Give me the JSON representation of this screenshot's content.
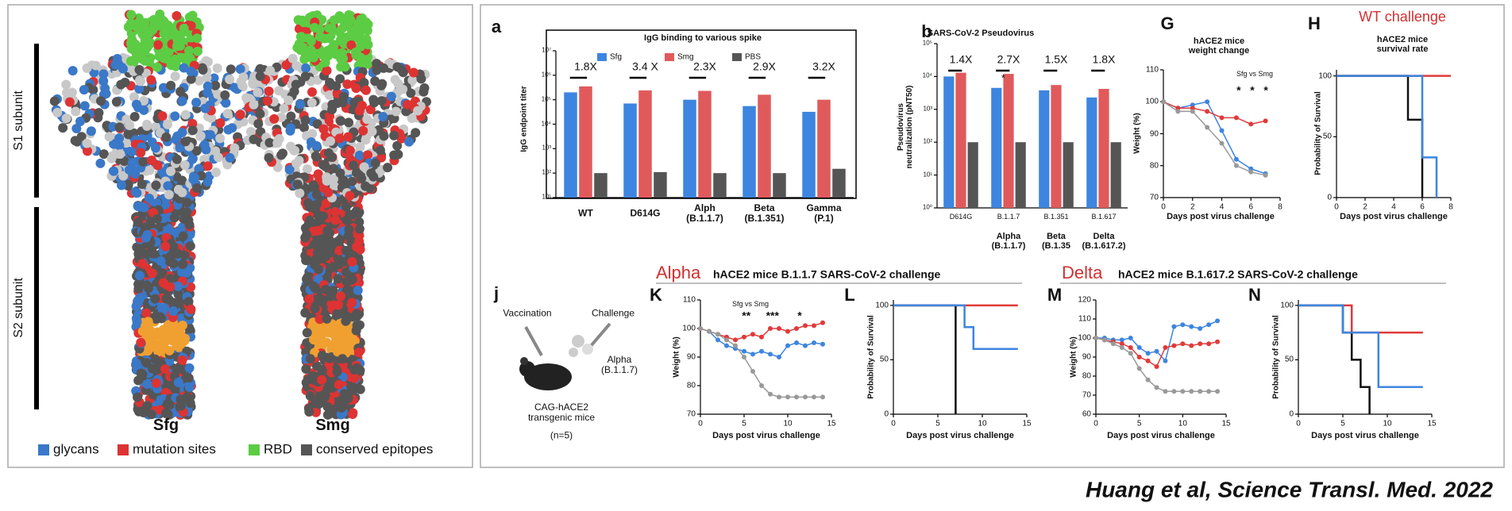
{
  "chart_data": [
    {
      "type": "bar",
      "label": "a",
      "title": "IgG binding to various spike",
      "ylabel": "IgG endpoint titer",
      "ylog": true,
      "ylim": [
        10,
        10000000
      ],
      "yticks": [
        {
          "value": 10,
          "label": "10¹"
        },
        {
          "value": 100,
          "label": "10²"
        },
        {
          "value": 1000,
          "label": "10³"
        },
        {
          "value": 10000,
          "label": "10⁴"
        },
        {
          "value": 100000,
          "label": "10⁵"
        },
        {
          "value": 1000000,
          "label": "10⁶"
        },
        {
          "value": 10000000,
          "label": "10⁷"
        }
      ],
      "categories": [
        "WT",
        "D614G",
        "Alph\n(B.1.1.7)",
        "Beta\n(B.1.351)",
        "Gamma\n(P.1)"
      ],
      "fold_changes": [
        "1.8X",
        "3.4 X",
        "2.3X",
        "2.9X",
        "3.2X"
      ],
      "series": [
        {
          "name": "Sfg",
          "color": "#3d85e0",
          "values": [
            200000,
            70000,
            100000,
            55000,
            32000
          ]
        },
        {
          "name": "Smg",
          "color": "#e05a5c",
          "values": [
            350000,
            240000,
            230000,
            160000,
            100000
          ]
        },
        {
          "name": "PBS",
          "color": "#555555",
          "values": [
            100,
            110,
            100,
            100,
            150
          ]
        }
      ]
    },
    {
      "type": "bar",
      "label": "b",
      "title": "SARS-CoV-2 Pseudovirus",
      "ylabel": "Pseudovirus\nneutralization (pNT50)",
      "ylog": true,
      "ylim": [
        1,
        100000
      ],
      "yticks": [
        {
          "value": 1,
          "label": "10⁰"
        },
        {
          "value": 10,
          "label": "10¹"
        },
        {
          "value": 100,
          "label": "10²"
        },
        {
          "value": 1000,
          "label": "10³"
        },
        {
          "value": 10000,
          "label": "10⁴"
        },
        {
          "value": 100000,
          "label": "10⁵"
        }
      ],
      "categories": [
        "D614G",
        "B.1.1.7",
        "B.1.351",
        "B.1.617"
      ],
      "category_notes": [
        null,
        "Alpha\n(B.1.1.7)",
        "Beta\n(B.1.35",
        "Delta\n(B.1.617.2)"
      ],
      "fold_changes": [
        "1.4X",
        "2.7X",
        "1.5X",
        "1.8X"
      ],
      "significance": [
        null,
        "*",
        null,
        null
      ],
      "series": [
        {
          "color": "#3d85e0",
          "values": [
            10000,
            4500,
            3800,
            2300
          ]
        },
        {
          "color": "#e05a5c",
          "values": [
            13000,
            12000,
            5500,
            4200
          ]
        },
        {
          "color": "#555555",
          "values": [
            100,
            100,
            100,
            100
          ]
        }
      ]
    },
    {
      "type": "line",
      "label": "G",
      "title": "hACE2 mice\nweight change",
      "ylabel": "Weight (%)",
      "xlabel": "Days post virus challenge",
      "note": "Sfg vs Smg",
      "stars": "*   *   *",
      "xlim": [
        0,
        8
      ],
      "xticks": [
        0,
        2,
        4,
        6,
        8
      ],
      "ylim": [
        70,
        110
      ],
      "yticks": [
        70,
        80,
        90,
        100,
        110
      ],
      "x": [
        0,
        1,
        2,
        3,
        4,
        5,
        6,
        7
      ],
      "series": [
        {
          "color": "#3d85e0",
          "values": [
            100,
            98,
            99,
            100,
            91,
            82,
            79,
            77.5
          ]
        },
        {
          "color": "#e03a3a",
          "values": [
            100,
            98,
            98,
            97,
            95,
            95,
            93,
            94
          ]
        },
        {
          "color": "#999999",
          "values": [
            100,
            97,
            97,
            92,
            87,
            80,
            78,
            77
          ]
        }
      ]
    },
    {
      "type": "step",
      "label": "H",
      "subtitle": "WT challenge",
      "title": "hACE2 mice\nsurvival rate",
      "ylabel": "Probability of Survival",
      "xlabel": "Days post virus challenge",
      "xlim": [
        0,
        8
      ],
      "xticks": [
        0,
        2,
        4,
        6,
        8
      ],
      "ylim": [
        0,
        105
      ],
      "yticks": [
        0,
        50,
        100
      ],
      "series": [
        {
          "color": "#e03a3a",
          "x": [
            0,
            8
          ],
          "values": [
            100,
            100
          ]
        },
        {
          "color": "#111111",
          "x": [
            0,
            5,
            6
          ],
          "values": [
            100,
            64,
            0
          ]
        },
        {
          "color": "#3d85e0",
          "x": [
            0,
            6,
            7
          ],
          "values": [
            100,
            33,
            0
          ]
        }
      ]
    },
    {
      "type": "line",
      "label": "K",
      "ylabel": "Weight (%)",
      "xlabel": "Days post virus challenge",
      "note": "Sfg vs Smg",
      "stars": "**     ***      *",
      "xlim": [
        0,
        15
      ],
      "xticks": [
        0,
        5,
        10,
        15
      ],
      "ylim": [
        70,
        110
      ],
      "yticks": [
        70,
        80,
        90,
        100,
        110
      ],
      "x": [
        0,
        1,
        2,
        3,
        4,
        5,
        6,
        7,
        8,
        9,
        10,
        11,
        12,
        13,
        14
      ],
      "series": [
        {
          "color": "#3d85e0",
          "values": [
            100,
            99,
            96,
            94,
            93,
            92,
            91,
            92,
            91,
            90,
            94,
            95,
            94,
            95,
            94.5
          ]
        },
        {
          "color": "#e03a3a",
          "values": [
            100,
            99,
            98,
            97,
            96,
            97,
            98,
            97,
            100,
            100,
            99,
            100,
            101,
            101,
            102
          ]
        },
        {
          "color": "#999999",
          "values": [
            100,
            99,
            98,
            96,
            94,
            90,
            85,
            80,
            77,
            76,
            76,
            76,
            76,
            76,
            76
          ]
        }
      ]
    },
    {
      "type": "step",
      "label": "L",
      "ylabel": "Probability of Survival",
      "xlabel": "Days post virus challenge",
      "xlim": [
        0,
        15
      ],
      "xticks": [
        0,
        5,
        10,
        15
      ],
      "ylim": [
        0,
        105
      ],
      "yticks": [
        0,
        50,
        100
      ],
      "series": [
        {
          "color": "#e03a3a",
          "x": [
            0,
            14
          ],
          "values": [
            100,
            100
          ]
        },
        {
          "color": "#111111",
          "x": [
            0,
            7
          ],
          "values": [
            100,
            0
          ]
        },
        {
          "color": "#3d85e0",
          "x": [
            0,
            8,
            9,
            14
          ],
          "values": [
            100,
            80,
            60,
            60
          ]
        }
      ]
    },
    {
      "type": "line",
      "label": "M",
      "ylabel": "Weight (%)",
      "xlabel": "Days post virus challenge",
      "xlim": [
        0,
        15
      ],
      "xticks": [
        0,
        5,
        10,
        15
      ],
      "ylim": [
        60,
        120
      ],
      "yticks": [
        60,
        70,
        80,
        90,
        100,
        110,
        120
      ],
      "x": [
        0,
        1,
        2,
        3,
        4,
        5,
        6,
        7,
        8,
        9,
        10,
        11,
        12,
        13,
        14
      ],
      "series": [
        {
          "color": "#3d85e0",
          "values": [
            100,
            100,
            99,
            99,
            100,
            95,
            92,
            93,
            88,
            106,
            107,
            106,
            105,
            107,
            109
          ]
        },
        {
          "color": "#e03a3a",
          "values": [
            100,
            99,
            98,
            97,
            95,
            90,
            88,
            85,
            95,
            96,
            97,
            96,
            97,
            97,
            98
          ]
        },
        {
          "color": "#999999",
          "values": [
            100,
            99,
            97,
            95,
            92,
            84,
            78,
            74,
            72,
            72,
            72,
            72,
            72,
            72,
            72
          ]
        }
      ]
    },
    {
      "type": "step",
      "label": "N",
      "ylabel": "Probability of Survival",
      "xlabel": "Days post virus challenge",
      "xlim": [
        0,
        15
      ],
      "xticks": [
        0,
        5,
        10,
        15
      ],
      "ylim": [
        0,
        105
      ],
      "yticks": [
        0,
        50,
        100
      ],
      "series": [
        {
          "color": "#e03a3a",
          "x": [
            0,
            6,
            14
          ],
          "values": [
            100,
            75,
            75
          ]
        },
        {
          "color": "#111111",
          "x": [
            0,
            5,
            6,
            7,
            8
          ],
          "values": [
            100,
            75,
            50,
            25,
            0
          ]
        },
        {
          "color": "#3d85e0",
          "x": [
            0,
            5,
            9,
            14
          ],
          "values": [
            100,
            75,
            25,
            25
          ]
        }
      ]
    }
  ],
  "slide": {
    "structure": {
      "s1": "S1 subunit",
      "s2": "S2 subunit",
      "left": "Sfg",
      "right": "Smg",
      "legend": [
        {
          "label": "glycans",
          "color": "#3a78c8"
        },
        {
          "label": "mutation sites",
          "color": "#dd3333"
        },
        {
          "label": "RBD",
          "color": "#5ccc44"
        },
        {
          "label": "conserved epitopes",
          "color": "#555555"
        }
      ]
    },
    "panel_j": {
      "label": "j",
      "vaccination": "Vaccination",
      "challenge": "Challenge",
      "strain": "Alpha\n(B.1.1.7)",
      "mice": "CAG-hACE2\ntransgenic mice",
      "n": "(n=5)"
    },
    "alpha_header": {
      "variant": "Alpha",
      "text": "hACE2 mice B.1.1.7 SARS-CoV-2 challenge"
    },
    "delta_header": {
      "variant": "Delta",
      "text": "hACE2 mice B.1.617.2 SARS-CoV-2 challenge"
    },
    "citation": "Huang et al, Science Transl. Med. 2022"
  }
}
